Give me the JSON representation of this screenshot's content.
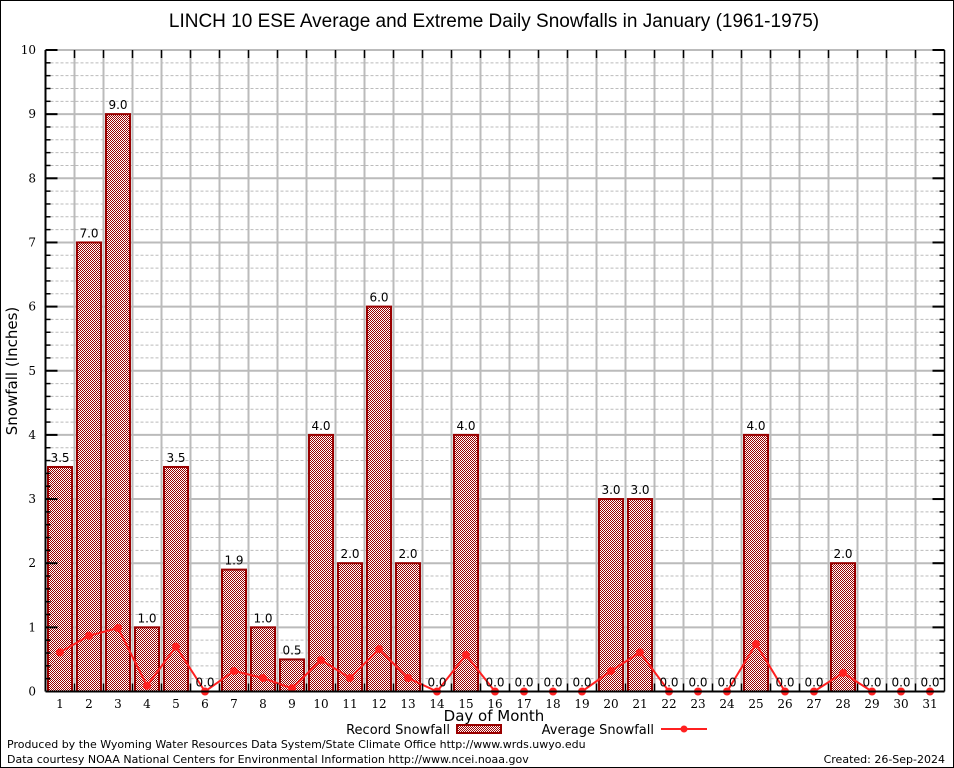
{
  "chart_data": {
    "type": "bar",
    "title": "LINCH 10 ESE Average and Extreme Daily Snowfalls in January (1961-1975)",
    "xlabel": "Day of Month",
    "ylabel": "Snowfall (Inches)",
    "ylim": [
      0,
      10
    ],
    "yticks": [
      "0",
      "1",
      "2",
      "3",
      "4",
      "5",
      "6",
      "7",
      "8",
      "9",
      "10"
    ],
    "grid": true,
    "categories": [
      "1",
      "2",
      "3",
      "4",
      "5",
      "6",
      "7",
      "8",
      "9",
      "10",
      "11",
      "12",
      "13",
      "14",
      "15",
      "16",
      "17",
      "18",
      "19",
      "20",
      "21",
      "22",
      "23",
      "24",
      "25",
      "26",
      "27",
      "28",
      "29",
      "30",
      "31"
    ],
    "series": [
      {
        "name": "Record Snowfall",
        "type": "bar",
        "color": "#990000",
        "values": [
          3.5,
          7.0,
          9.0,
          1.0,
          3.5,
          0.0,
          1.9,
          1.0,
          0.5,
          4.0,
          2.0,
          6.0,
          2.0,
          0.0,
          4.0,
          0.0,
          0.0,
          0.0,
          0.0,
          3.0,
          3.0,
          0.0,
          0.0,
          0.0,
          4.0,
          0.0,
          0.0,
          2.0,
          0.0,
          0.0,
          0.0
        ],
        "labels": [
          "3.5",
          "7.0",
          "9.0",
          "1.0",
          "3.5",
          "0.0",
          "1.9",
          "1.0",
          "0.5",
          "4.0",
          "2.0",
          "6.0",
          "2.0",
          "0.0",
          "4.0",
          "0.0",
          "0.0",
          "0.0",
          "0.0",
          "3.0",
          "3.0",
          "0.0",
          "0.0",
          "0.0",
          "4.0",
          "0.0",
          "0.0",
          "2.0",
          "0.0",
          "0.0",
          "0.0"
        ]
      },
      {
        "name": "Average Snowfall",
        "type": "line",
        "color": "#ff2020",
        "values": [
          0.61,
          0.87,
          0.99,
          0.09,
          0.7,
          0.0,
          0.32,
          0.21,
          0.05,
          0.49,
          0.21,
          0.66,
          0.21,
          0.0,
          0.57,
          0.0,
          0.0,
          0.0,
          0.0,
          0.32,
          0.61,
          0.0,
          0.0,
          0.0,
          0.74,
          0.0,
          0.0,
          0.29,
          0.0,
          0.0,
          0.0
        ]
      }
    ],
    "legend": {
      "placement": "bottom-center",
      "items": [
        "Record Snowfall",
        "Average Snowfall"
      ]
    }
  },
  "footer": {
    "produced_by": "Produced by the Wyoming Water Resources Data System/State Climate Office http://www.wrds.uwyo.edu",
    "data_courtesy": "Data courtesy NOAA National Centers for Environmental Information http://www.ncei.noaa.gov",
    "created": "Created: 26-Sep-2024"
  }
}
